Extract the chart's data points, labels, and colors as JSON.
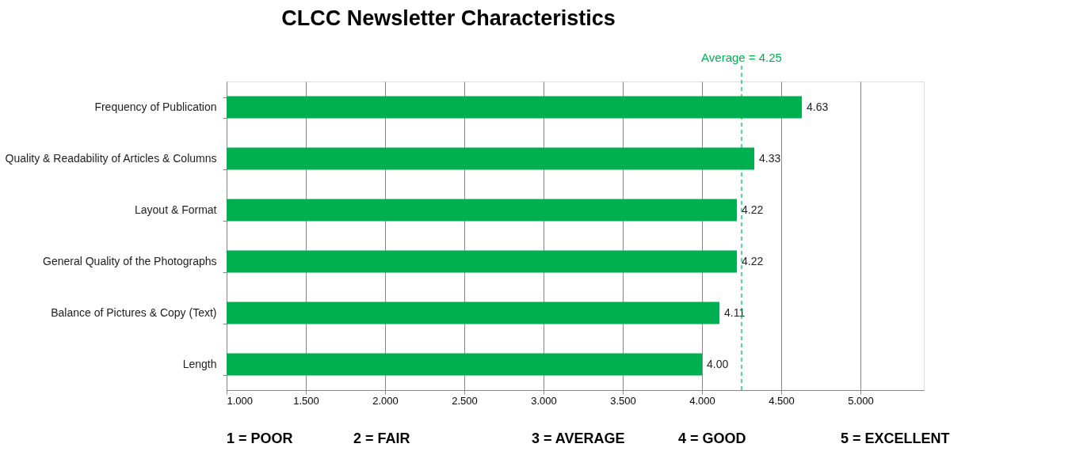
{
  "chart_data": {
    "type": "bar",
    "orientation": "horizontal",
    "title": "CLCC Newsletter Characteristics",
    "categories": [
      "Frequency of Publication",
      "Quality & Readability of Articles & Columns",
      "Layout & Format",
      "General Quality of the Photographs",
      "Balance of Pictures & Copy (Text)",
      "Length"
    ],
    "values": [
      4.63,
      4.33,
      4.22,
      4.22,
      4.11,
      4.0
    ],
    "value_labels": [
      "4.63",
      "4.33",
      "4.22",
      "4.22",
      "4.11",
      "4.00"
    ],
    "color": "#00b050",
    "xlim": [
      1,
      5.4
    ],
    "xticks": [
      {
        "value": 1,
        "label": "1.000"
      },
      {
        "value": 1.5,
        "label": "1.500"
      },
      {
        "value": 2,
        "label": "2.000"
      },
      {
        "value": 2.5,
        "label": "2.500"
      },
      {
        "value": 3,
        "label": "3.000"
      },
      {
        "value": 3.5,
        "label": "3.500"
      },
      {
        "value": 4,
        "label": "4.000"
      },
      {
        "value": 4.5,
        "label": "4.500"
      },
      {
        "value": 5,
        "label": "5.000"
      }
    ],
    "grid": "x",
    "ref_lines": [
      {
        "axis": "x",
        "value": 4.25,
        "label": "Average = 4.25",
        "color": "#00b050",
        "line_style": "dashed"
      }
    ],
    "annotations": [
      "1 = POOR",
      "2 = FAIR",
      "3 = AVERAGE",
      "4 = GOOD",
      "5 = EXCELLENT"
    ]
  }
}
